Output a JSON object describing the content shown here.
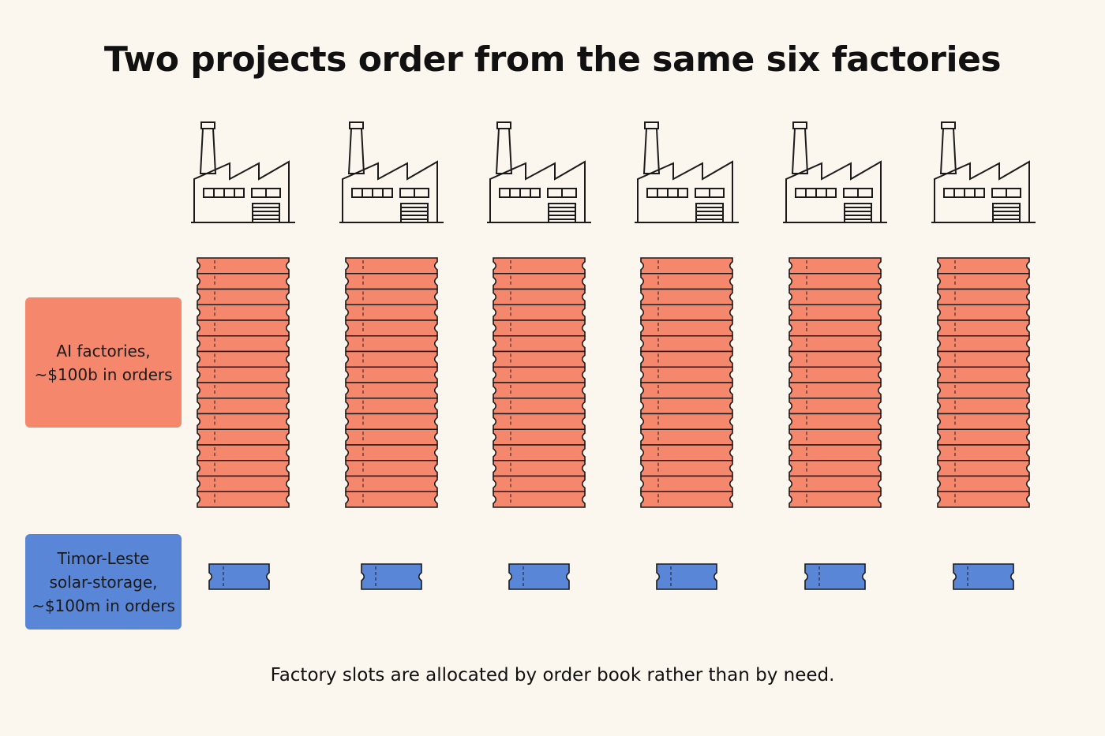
{
  "title": "Two projects order from the same six factories",
  "factories": {
    "count": 6,
    "icon": "factory-icon"
  },
  "projects": {
    "ai": {
      "label_lines": [
        "AI factories,",
        "~$100b in orders"
      ],
      "color": "#f4876c",
      "tickets_per_factory": 16
    },
    "timor_leste": {
      "label_lines": [
        "Timor-Leste",
        "solar-storage,",
        "~$100m in orders"
      ],
      "color": "#5a86d8",
      "tickets_per_factory": 1
    }
  },
  "caption": "Factory slots are allocated by order book rather than by need."
}
